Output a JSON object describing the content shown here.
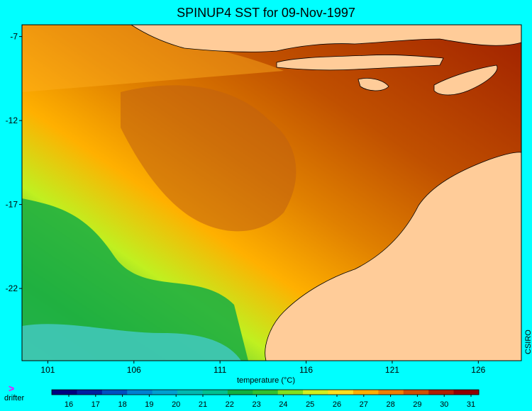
{
  "title": "SPINUP4 SST for 09-Nov-1997",
  "credit": "CSIRO",
  "colorbar": {
    "label": "temperature (°C)",
    "ticks": [
      16,
      17,
      18,
      19,
      20,
      21,
      22,
      23,
      24,
      25,
      26,
      27,
      28,
      29,
      30,
      31
    ],
    "colors": [
      "#000080",
      "#0020a0",
      "#0050c0",
      "#0080d0",
      "#00a0d0",
      "#00b8b0",
      "#00c090",
      "#10b040",
      "#30c030",
      "#80e020",
      "#d0f020",
      "#ffe020",
      "#ffb000",
      "#f08000",
      "#d05000",
      "#b02000",
      "#900000"
    ]
  },
  "legend": {
    "drifter_label": "drifter",
    "drifter_symbol": ">"
  },
  "map": {
    "lon_ticks": [
      101,
      106,
      111,
      116,
      121,
      126
    ],
    "lat_ticks": [
      -7,
      -12,
      -17,
      -22
    ],
    "lon_range": [
      99.5,
      128.5
    ],
    "lat_range": [
      -26.3,
      -6.3
    ],
    "land_color": "#ffcc99",
    "frame_color": "#000000"
  }
}
